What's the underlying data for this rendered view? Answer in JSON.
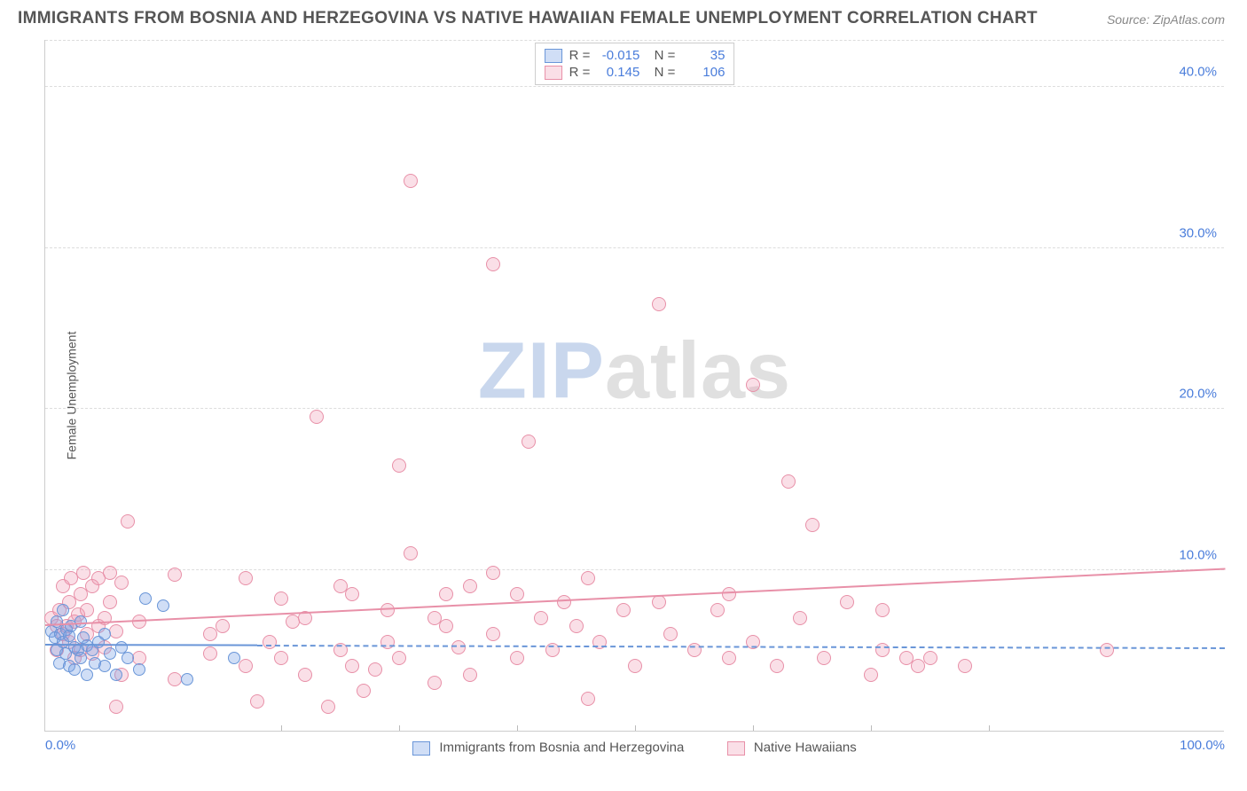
{
  "title": "IMMIGRANTS FROM BOSNIA AND HERZEGOVINA VS NATIVE HAWAIIAN FEMALE UNEMPLOYMENT CORRELATION CHART",
  "source": "Source: ZipAtlas.com",
  "y_axis": {
    "label": "Female Unemployment",
    "min": 0,
    "max": 43,
    "ticks": [
      10,
      20,
      30,
      40
    ],
    "tick_labels": [
      "10.0%",
      "20.0%",
      "30.0%",
      "40.0%"
    ],
    "label_color": "#4a7ddb"
  },
  "x_axis": {
    "min": 0,
    "max": 100,
    "ticks": [
      0,
      20,
      30,
      40,
      50,
      60,
      70,
      80,
      100
    ],
    "tick_labels": {
      "0": "0.0%",
      "100": "100.0%"
    }
  },
  "grid_color": "#dddddd",
  "axis_color": "#cccccc",
  "series": {
    "blue": {
      "label": "Immigrants from Bosnia and Herzegovina",
      "fill": "rgba(120,160,230,0.35)",
      "stroke": "#6a96d8",
      "R": "-0.015",
      "N": "35",
      "trend": {
        "y0": 5.3,
        "y1": 5.1,
        "dashed_from_x": 18
      },
      "marker_size": 14,
      "points": [
        [
          0.5,
          6.2
        ],
        [
          0.8,
          5.8
        ],
        [
          1.0,
          5.0
        ],
        [
          1.0,
          6.8
        ],
        [
          1.2,
          4.2
        ],
        [
          1.3,
          6.0
        ],
        [
          1.5,
          5.5
        ],
        [
          1.5,
          7.5
        ],
        [
          1.7,
          4.8
        ],
        [
          1.8,
          6.3
        ],
        [
          2.0,
          5.9
        ],
        [
          2.0,
          4.0
        ],
        [
          2.2,
          6.5
        ],
        [
          2.5,
          5.2
        ],
        [
          2.5,
          3.8
        ],
        [
          2.8,
          5.0
        ],
        [
          3.0,
          6.8
        ],
        [
          3.0,
          4.5
        ],
        [
          3.2,
          5.8
        ],
        [
          3.5,
          3.5
        ],
        [
          3.5,
          5.3
        ],
        [
          4.0,
          5.0
        ],
        [
          4.2,
          4.2
        ],
        [
          4.5,
          5.5
        ],
        [
          5.0,
          4.0
        ],
        [
          5.0,
          6.0
        ],
        [
          5.5,
          4.8
        ],
        [
          6.0,
          3.5
        ],
        [
          6.5,
          5.2
        ],
        [
          7.0,
          4.5
        ],
        [
          8.0,
          3.8
        ],
        [
          8.5,
          8.2
        ],
        [
          10.0,
          7.8
        ],
        [
          12.0,
          3.2
        ],
        [
          16.0,
          4.5
        ]
      ]
    },
    "pink": {
      "label": "Native Hawaiians",
      "fill": "rgba(240,150,175,0.30)",
      "stroke": "#e890a8",
      "R": "0.145",
      "N": "106",
      "trend": {
        "y0": 6.5,
        "y1": 10.0,
        "dashed_from_x": null
      },
      "marker_size": 16,
      "points": [
        [
          0.5,
          7.0
        ],
        [
          1.0,
          6.5
        ],
        [
          1.0,
          5.0
        ],
        [
          1.2,
          7.5
        ],
        [
          1.5,
          6.0
        ],
        [
          1.5,
          9.0
        ],
        [
          1.8,
          6.5
        ],
        [
          2.0,
          8.0
        ],
        [
          2.0,
          5.5
        ],
        [
          2.2,
          9.5
        ],
        [
          2.5,
          6.8
        ],
        [
          2.5,
          4.5
        ],
        [
          2.8,
          7.2
        ],
        [
          3.0,
          8.5
        ],
        [
          3.0,
          5.0
        ],
        [
          3.2,
          9.8
        ],
        [
          3.5,
          6.0
        ],
        [
          3.5,
          7.5
        ],
        [
          4.0,
          9.0
        ],
        [
          4.0,
          4.8
        ],
        [
          4.5,
          6.5
        ],
        [
          4.5,
          9.5
        ],
        [
          5.0,
          7.0
        ],
        [
          5.0,
          5.2
        ],
        [
          5.5,
          8.0
        ],
        [
          5.5,
          9.8
        ],
        [
          6.0,
          6.2
        ],
        [
          6.0,
          1.5
        ],
        [
          6.5,
          3.5
        ],
        [
          6.5,
          9.2
        ],
        [
          7.0,
          13.0
        ],
        [
          8.0,
          4.5
        ],
        [
          8.0,
          6.8
        ],
        [
          11.0,
          3.2
        ],
        [
          11.0,
          9.7
        ],
        [
          14.0,
          6.0
        ],
        [
          14.0,
          4.8
        ],
        [
          15.0,
          6.5
        ],
        [
          17.0,
          4.0
        ],
        [
          17.0,
          9.5
        ],
        [
          18.0,
          1.8
        ],
        [
          19.0,
          5.5
        ],
        [
          20.0,
          8.2
        ],
        [
          20.0,
          4.5
        ],
        [
          21.0,
          6.8
        ],
        [
          22.0,
          3.5
        ],
        [
          22.0,
          7.0
        ],
        [
          23.0,
          19.5
        ],
        [
          24.0,
          1.5
        ],
        [
          25.0,
          5.0
        ],
        [
          25.0,
          9.0
        ],
        [
          26.0,
          8.5
        ],
        [
          26.0,
          4.0
        ],
        [
          27.0,
          2.5
        ],
        [
          28.0,
          3.8
        ],
        [
          29.0,
          5.5
        ],
        [
          29.0,
          7.5
        ],
        [
          30.0,
          4.5
        ],
        [
          30.0,
          16.5
        ],
        [
          31.0,
          34.2
        ],
        [
          31.0,
          11.0
        ],
        [
          33.0,
          7.0
        ],
        [
          33.0,
          3.0
        ],
        [
          34.0,
          6.5
        ],
        [
          34.0,
          8.5
        ],
        [
          35.0,
          5.2
        ],
        [
          36.0,
          9.0
        ],
        [
          36.0,
          3.5
        ],
        [
          38.0,
          6.0
        ],
        [
          38.0,
          9.8
        ],
        [
          38.0,
          29.0
        ],
        [
          40.0,
          8.5
        ],
        [
          40.0,
          4.5
        ],
        [
          41.0,
          18.0
        ],
        [
          42.0,
          7.0
        ],
        [
          43.0,
          5.0
        ],
        [
          44.0,
          8.0
        ],
        [
          45.0,
          6.5
        ],
        [
          46.0,
          2.0
        ],
        [
          46.0,
          9.5
        ],
        [
          47.0,
          5.5
        ],
        [
          49.0,
          7.5
        ],
        [
          50.0,
          4.0
        ],
        [
          52.0,
          8.0
        ],
        [
          52.0,
          26.5
        ],
        [
          53.0,
          6.0
        ],
        [
          55.0,
          5.0
        ],
        [
          57.0,
          7.5
        ],
        [
          58.0,
          4.5
        ],
        [
          58.0,
          8.5
        ],
        [
          60.0,
          5.5
        ],
        [
          60.0,
          21.5
        ],
        [
          62.0,
          4.0
        ],
        [
          63.0,
          15.5
        ],
        [
          64.0,
          7.0
        ],
        [
          65.0,
          12.8
        ],
        [
          66.0,
          4.5
        ],
        [
          68.0,
          8.0
        ],
        [
          70.0,
          3.5
        ],
        [
          71.0,
          5.0
        ],
        [
          71.0,
          7.5
        ],
        [
          73.0,
          4.5
        ],
        [
          74.0,
          4.0
        ],
        [
          75.0,
          4.5
        ],
        [
          78.0,
          4.0
        ],
        [
          90.0,
          5.0
        ]
      ]
    }
  },
  "watermark": {
    "zip": "ZIP",
    "atlas": "atlas",
    "zip_color": "#c9d7ed",
    "atlas_color": "#e0e0e0"
  },
  "bottom_legend_gap": 40
}
